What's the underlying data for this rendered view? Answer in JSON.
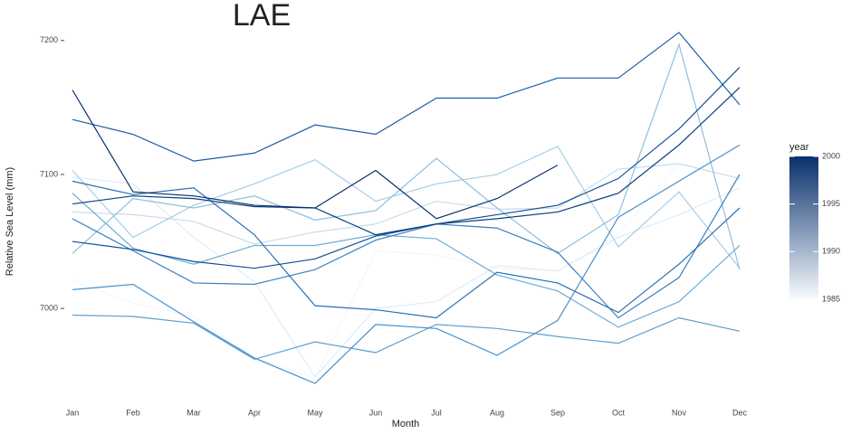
{
  "chart_data": {
    "type": "line",
    "title": "LAE",
    "x_label": "Month",
    "y_label": "Relative Sea Level (mm)",
    "categories": [
      "Jan",
      "Feb",
      "Mar",
      "Apr",
      "May",
      "Jun",
      "Jul",
      "Aug",
      "Sep",
      "Oct",
      "Nov",
      "Dec"
    ],
    "ylim": [
      6940,
      7210
    ],
    "yticks": [
      7000,
      7100,
      7200
    ],
    "grid": false,
    "colorbar": {
      "title": "year",
      "lim": [
        1985,
        2000
      ],
      "ticks": [
        1985,
        1990,
        1995,
        2000
      ],
      "colors": [
        "#f7fbff",
        "#08306b"
      ]
    },
    "series": [
      {
        "color": "#f1f7fd",
        "values": [
          7021,
          7004,
          6994,
          6963,
          6948,
          7043,
          7040,
          7030,
          7028,
          7055,
          7108,
          7097
        ]
      },
      {
        "color": "#dfebf7",
        "values": [
          7098,
          7093,
          7053,
          7020,
          6949,
          7000,
          7005,
          7032,
          7028,
          7053,
          7070,
          7090
        ]
      },
      {
        "color": "#c6dbef",
        "values": [
          7072,
          7070,
          7065,
          7048,
          7057,
          7063,
          7080,
          7074,
          7075,
          7104,
          7108,
          7097
        ]
      },
      {
        "color": "#a6cee4",
        "values": [
          7103,
          7053,
          7077,
          7093,
          7111,
          7080,
          7093,
          7100,
          7121,
          7046,
          7087,
          7030
        ]
      },
      {
        "color": "#8dbfdf",
        "values": [
          7041,
          7082,
          7075,
          7084,
          7066,
          7073,
          7112,
          7075,
          7041,
          7070,
          7197,
          7029
        ]
      },
      {
        "color": "#6aaed6",
        "values": [
          7086,
          7045,
          7033,
          7047,
          7047,
          7055,
          7052,
          7025,
          7013,
          6986,
          7005,
          7047
        ]
      },
      {
        "color": "#5a9fd0",
        "values": [
          6995,
          6994,
          6989,
          6962,
          6975,
          6967,
          6988,
          6985,
          6979,
          6974,
          6993,
          6983
        ]
      },
      {
        "color": "#4a90c8",
        "values": [
          7014,
          7018,
          6990,
          6963,
          6944,
          6988,
          6985,
          6965,
          6991,
          7068,
          7095,
          7122
        ]
      },
      {
        "color": "#3a7fbe",
        "values": [
          7067,
          7043,
          7019,
          7018,
          7029,
          7051,
          7063,
          7060,
          7042,
          6993,
          7023,
          7100
        ]
      },
      {
        "color": "#2b6fb2",
        "values": [
          7095,
          7085,
          7090,
          7055,
          7002,
          6999,
          6993,
          7027,
          7019,
          6997,
          7033,
          7075
        ]
      },
      {
        "color": "#1c5da4",
        "values": [
          7141,
          7130,
          7110,
          7116,
          7137,
          7130,
          7157,
          7157,
          7172,
          7172,
          7206,
          7152
        ]
      },
      {
        "color": "#124e93",
        "values": [
          7050,
          7044,
          7035,
          7030,
          7037,
          7054,
          7063,
          7070,
          7077,
          7097,
          7134,
          7180
        ]
      },
      {
        "color": "#0b3f80",
        "values": [
          7078,
          7084,
          7082,
          7076,
          7075,
          7055,
          7063,
          7067,
          7072,
          7086,
          7122,
          7165
        ]
      },
      {
        "color": "#08306b",
        "values": [
          7163,
          7087,
          7084,
          7077,
          7075,
          7103,
          7067,
          7082,
          7107,
          null,
          null,
          null
        ]
      }
    ]
  }
}
